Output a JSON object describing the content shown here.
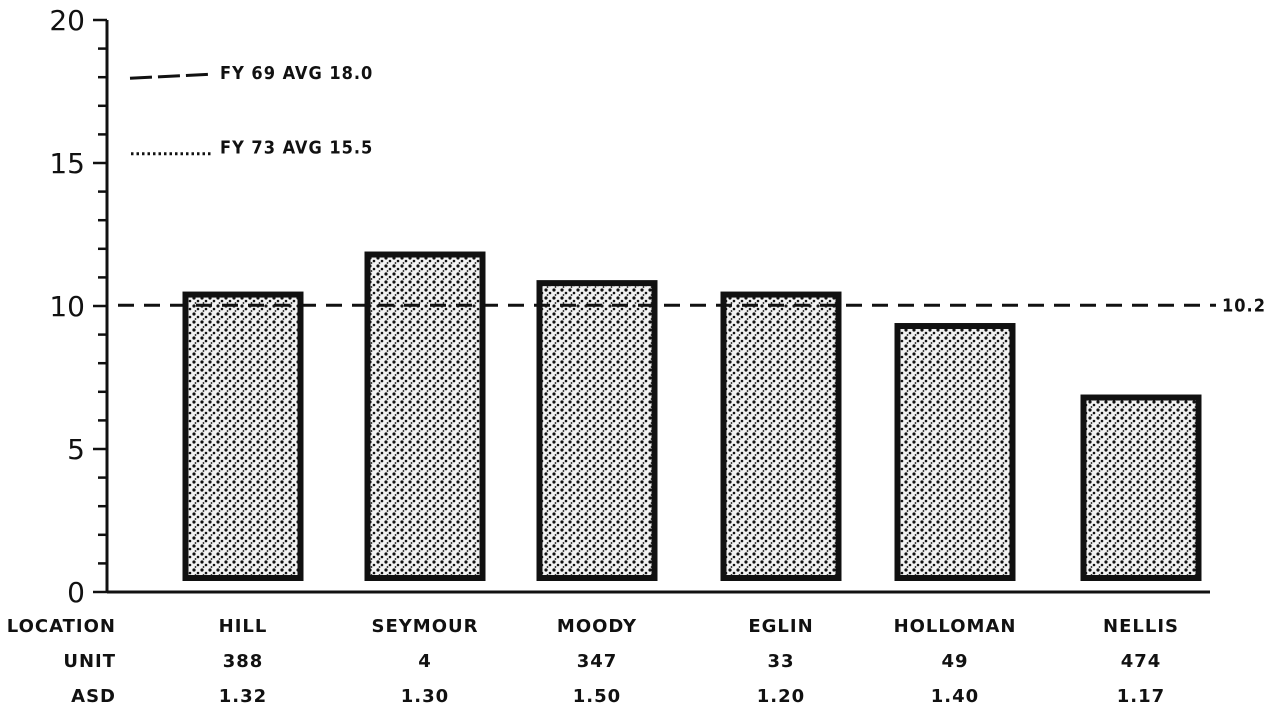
{
  "chart_data": {
    "type": "bar",
    "categories": [
      "HILL",
      "SEYMOUR",
      "MOODY",
      "EGLIN",
      "HOLLOMAN",
      "NELLIS"
    ],
    "values": [
      10.4,
      11.8,
      10.8,
      10.4,
      9.3,
      6.8
    ],
    "ylim": [
      0,
      20
    ],
    "yticks": [
      "0",
      "5",
      "10",
      "15",
      "20"
    ],
    "grid": false,
    "reference_lines": [
      {
        "label": "FY 69 AVG 18.0",
        "value": 18.0,
        "style": "long-dash"
      },
      {
        "label": "FY 73 AVG 15.5",
        "value": 15.5,
        "style": "dotted"
      },
      {
        "label": "10.2",
        "value": 10.2,
        "style": "dashed"
      }
    ],
    "table_rows": [
      {
        "label": "LOCATION",
        "values": [
          "HILL",
          "SEYMOUR",
          "MOODY",
          "EGLIN",
          "HOLLOMAN",
          "NELLIS"
        ]
      },
      {
        "label": "UNIT",
        "values": [
          "388",
          "4",
          "347",
          "33",
          "49",
          "474"
        ]
      },
      {
        "label": "ASD",
        "values": [
          "1.32",
          "1.30",
          "1.50",
          "1.20",
          "1.40",
          "1.17"
        ]
      }
    ]
  },
  "colors": {
    "ink": "#111111",
    "bar_fill_light": "#f4f4f4",
    "background": "#ffffff"
  }
}
